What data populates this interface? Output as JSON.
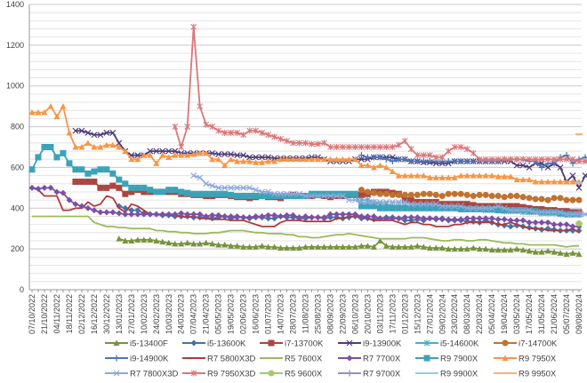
{
  "chart_data": {
    "type": "line",
    "title": "",
    "xlabel": "",
    "ylabel": "",
    "ylim": [
      0,
      1400
    ],
    "yticks": [
      0,
      200,
      400,
      600,
      800,
      1000,
      1200,
      1400
    ],
    "minor_grid_step": 40,
    "grid": true,
    "legend_position": "bottom",
    "x_labels": [
      "07/10/2022",
      "21/10/2022",
      "04/11/2022",
      "18/11/2022",
      "02/12/2022",
      "16/12/2022",
      "30/12/2022",
      "13/01/2023",
      "27/01/2023",
      "10/02/2023",
      "24/02/2023",
      "10/03/2023",
      "24/03/2023",
      "07/04/2023",
      "21/04/2023",
      "05/05/2023",
      "19/05/2023",
      "02/06/2023",
      "16/06/2023",
      "01/07/2023",
      "14/07/2023",
      "28/07/2023",
      "11/08/2023",
      "25/08/2023",
      "08/09/2023",
      "22/09/2023",
      "06/10/2023",
      "20/10/2023",
      "03/11/2023",
      "17/11/2023",
      "01/12/2023",
      "15/12/2023",
      "27/01/2024",
      "09/02/2024",
      "23/02/2024",
      "08/03/2024",
      "22/03/2024",
      "05/04/2024",
      "19/04/2024",
      "03/05/2024",
      "17/05/2024",
      "31/05/2024",
      "21/06/2024",
      "05/07/2024",
      "09/08/2024"
    ],
    "points_per_label": 2,
    "n_points": 89,
    "series": [
      {
        "name": "i5-13400F",
        "color": "#77933C",
        "marker": "triangle",
        "start": 14,
        "values": [
          250,
          240,
          240,
          245,
          245,
          245,
          240,
          235,
          230,
          225,
          225,
          230,
          225,
          225,
          230,
          225,
          220,
          220,
          215,
          215,
          210,
          210,
          210,
          215,
          210,
          210,
          205,
          205,
          205,
          205,
          210,
          210,
          210,
          210,
          210,
          210,
          210,
          210,
          210,
          215,
          215,
          210,
          240,
          215,
          210,
          210,
          210,
          210,
          215,
          210,
          205,
          205,
          205,
          200,
          200,
          200,
          200,
          205,
          200,
          200,
          195,
          195,
          195,
          195,
          200,
          195,
          190,
          185,
          185,
          190,
          185,
          180,
          175,
          180,
          175
        ]
      },
      {
        "name": "i5-13600K",
        "color": "#4572A7",
        "marker": "diamond",
        "start": 14,
        "values": [
          410,
          400,
          390,
          390,
          375,
          370,
          370,
          365,
          365,
          360,
          360,
          360,
          355,
          355,
          355,
          350,
          355,
          360,
          350,
          355,
          355,
          350,
          355,
          355,
          350,
          350,
          360,
          355,
          355,
          350,
          350,
          355,
          355,
          350,
          355,
          355,
          350,
          355,
          360,
          350,
          350,
          345,
          350,
          355,
          355,
          350,
          340,
          340,
          345,
          340,
          350,
          345,
          350,
          340,
          340,
          340,
          335,
          335,
          330,
          340,
          330,
          320,
          315,
          310,
          315,
          310,
          305,
          300,
          295,
          300,
          295,
          290,
          290,
          290,
          290
        ]
      },
      {
        "name": "i7-13700K",
        "color": "#AA4643",
        "marker": "square",
        "start": 7,
        "values": [
          530,
          530,
          530,
          530,
          500,
          500,
          510,
          500,
          470,
          480,
          490,
          480,
          480,
          480,
          480,
          480,
          480,
          470,
          470,
          465,
          465,
          460,
          460,
          465,
          465,
          460,
          455,
          455,
          450,
          455,
          460,
          455,
          455,
          450,
          460,
          465,
          460,
          460,
          460,
          465,
          460,
          455,
          460,
          460,
          465,
          465,
          465,
          470,
          480,
          480,
          480,
          475,
          470,
          440,
          440,
          430,
          430,
          430,
          430,
          420,
          420,
          420,
          420,
          420,
          415,
          410,
          410,
          410,
          410,
          410,
          410,
          410,
          405,
          400,
          395,
          395,
          390,
          390,
          385,
          385,
          380,
          380
        ]
      },
      {
        "name": "i9-13900K",
        "color": "#4F3D7A",
        "marker": "x",
        "start": 7,
        "values": [
          780,
          780,
          770,
          760,
          760,
          770,
          770,
          720,
          680,
          660,
          660,
          660,
          680,
          680,
          680,
          680,
          680,
          670,
          670,
          670,
          670,
          670,
          670,
          665,
          665,
          665,
          660,
          660,
          650,
          650,
          650,
          650,
          645,
          645,
          645,
          645,
          645,
          645,
          650,
          650,
          640,
          630,
          630,
          630,
          630,
          640,
          640,
          640,
          650,
          650,
          650,
          650,
          640,
          640,
          630,
          630,
          625,
          625,
          620,
          620,
          620,
          630,
          630,
          630,
          630,
          630,
          630,
          630,
          630,
          630,
          630,
          610,
          610,
          600,
          620,
          620,
          600,
          620,
          600,
          530,
          560,
          500,
          560,
          580,
          510,
          530,
          510,
          520
        ]
      },
      {
        "name": "i5-14600K",
        "color": "#4BACC6",
        "marker": "star",
        "start": 53,
        "values": [
          440,
          440,
          430,
          420,
          420,
          410,
          410,
          410,
          410,
          410,
          410,
          410,
          400,
          400,
          400,
          400,
          400,
          395,
          395,
          395,
          390,
          390,
          390,
          385,
          385,
          385,
          380,
          380,
          380,
          375,
          375,
          375,
          370,
          370,
          370,
          370
        ]
      },
      {
        "name": "i7-14700K",
        "color": "#C0722E",
        "marker": "circle",
        "start": 53,
        "values": [
          490,
          480,
          475,
          470,
          470,
          465,
          465,
          465,
          465,
          465,
          470,
          470,
          465,
          460,
          470,
          470,
          470,
          465,
          460,
          465,
          465,
          460,
          460,
          455,
          460,
          460,
          455,
          450,
          445,
          445,
          440,
          450,
          450,
          440,
          440,
          440
        ]
      },
      {
        "name": "i9-14900K",
        "color": "#4A78B8",
        "marker": "plus",
        "start": 53,
        "values": [
          660,
          650,
          650,
          650,
          640,
          630,
          640,
          640,
          630,
          630,
          630,
          630,
          630,
          630,
          630,
          630,
          630,
          630,
          630,
          630,
          630,
          630,
          630,
          640,
          640,
          640,
          640,
          630,
          630,
          600,
          620,
          620,
          650,
          660,
          620,
          640,
          650,
          640,
          640,
          620,
          620,
          600,
          610,
          620
        ]
      },
      {
        "name": "R7 5800X3D",
        "color": "#B03A3A",
        "marker": "none",
        "start": 0,
        "values": [
          500,
          490,
          460,
          460,
          460,
          390,
          390,
          400,
          400,
          430,
          410,
          420,
          460,
          450,
          400,
          380,
          420,
          410,
          390,
          370,
          370,
          370,
          370,
          365,
          360,
          355,
          360,
          350,
          350,
          345,
          345,
          345,
          340,
          340,
          340,
          330,
          320,
          310,
          310,
          310,
          330,
          340,
          340,
          340,
          335,
          335,
          335,
          335,
          335,
          350,
          350,
          360,
          360,
          360,
          350,
          340,
          340,
          340,
          340,
          330,
          320,
          330,
          330,
          320,
          320,
          310,
          310,
          310,
          320,
          320,
          330,
          330,
          330,
          330,
          330,
          320,
          320,
          330,
          320,
          310,
          300,
          300,
          300,
          290,
          290,
          290,
          290,
          300,
          280
        ]
      },
      {
        "name": "R5 7600X",
        "color": "#9BBB59",
        "marker": "none",
        "start": 0,
        "values": [
          360,
          360,
          360,
          360,
          360,
          360,
          360,
          360,
          360,
          360,
          330,
          320,
          310,
          310,
          305,
          305,
          300,
          300,
          300,
          300,
          290,
          290,
          285,
          285,
          280,
          280,
          275,
          275,
          275,
          280,
          280,
          285,
          290,
          290,
          290,
          285,
          280,
          280,
          275,
          275,
          275,
          270,
          270,
          260,
          260,
          255,
          255,
          260,
          265,
          270,
          270,
          275,
          270,
          265,
          260,
          255,
          250,
          250,
          250,
          250,
          250,
          255,
          255,
          255,
          250,
          245,
          240,
          240,
          245,
          245,
          240,
          240,
          245,
          245,
          240,
          235,
          230,
          230,
          225,
          225,
          220,
          220,
          220,
          220,
          220,
          215,
          210,
          215,
          215
        ]
      },
      {
        "name": "R7 7700X",
        "color": "#7E4FA6",
        "marker": "diamond",
        "start": 0,
        "values": [
          500,
          495,
          500,
          500,
          480,
          475,
          440,
          420,
          410,
          400,
          390,
          380,
          380,
          380,
          375,
          370,
          370,
          370,
          370,
          370,
          370,
          370,
          370,
          370,
          375,
          370,
          370,
          370,
          360,
          365,
          365,
          360,
          360,
          360,
          355,
          355,
          360,
          360,
          365,
          365,
          360,
          365,
          365,
          355,
          360,
          355,
          355,
          355,
          370,
          370,
          370,
          370,
          370,
          360,
          360,
          360,
          350,
          350,
          350,
          350,
          355,
          355,
          355,
          350,
          350,
          350,
          345,
          345,
          345,
          345,
          350,
          350,
          350,
          350,
          350,
          345,
          345,
          340,
          340,
          340,
          330,
          330,
          330,
          330,
          320,
          320,
          320,
          310,
          310
        ]
      },
      {
        "name": "R9 7900X",
        "color": "#3BA3B8",
        "marker": "square",
        "start": 0,
        "values": [
          590,
          650,
          700,
          700,
          650,
          670,
          620,
          590,
          590,
          570,
          580,
          590,
          590,
          570,
          540,
          520,
          500,
          500,
          500,
          490,
          480,
          480,
          490,
          490,
          480,
          475,
          470,
          470,
          470,
          470,
          470,
          470,
          465,
          460,
          460,
          460,
          460,
          460,
          460,
          460,
          460,
          460,
          460,
          460,
          460,
          470,
          470,
          470,
          470,
          470,
          470,
          470,
          470,
          410,
          410,
          410,
          400,
          400,
          400,
          400,
          400,
          400,
          400,
          400,
          400,
          400,
          400,
          400,
          400,
          395,
          395,
          395,
          395,
          395,
          395,
          390,
          390,
          390,
          390,
          390,
          385,
          385,
          380,
          380,
          380,
          375,
          370,
          370,
          370
        ]
      },
      {
        "name": "R9 7950X",
        "color": "#F79646",
        "marker": "triangle",
        "start": 0,
        "values": [
          870,
          870,
          870,
          900,
          850,
          900,
          770,
          700,
          700,
          720,
          700,
          700,
          710,
          710,
          700,
          680,
          640,
          640,
          660,
          660,
          620,
          660,
          650,
          660,
          660,
          660,
          665,
          670,
          670,
          640,
          640,
          610,
          640,
          630,
          630,
          630,
          625,
          625,
          630,
          630,
          640,
          640,
          640,
          640,
          640,
          640,
          640,
          640,
          640,
          640,
          640,
          640,
          640,
          610,
          610,
          600,
          610,
          600,
          580,
          560,
          560,
          560,
          560,
          560,
          550,
          550,
          550,
          550,
          550,
          560,
          560,
          560,
          560,
          560,
          560,
          555,
          555,
          555,
          540,
          540,
          540,
          530,
          530,
          530,
          530,
          530,
          530,
          530,
          530
        ]
      },
      {
        "name": "R7 7800X3D",
        "color": "#8EA9DB",
        "marker": "x",
        "start": 26,
        "values": [
          560,
          550,
          520,
          510,
          500,
          500,
          500,
          500,
          500,
          500,
          490,
          480,
          480,
          470,
          470,
          470,
          470,
          470,
          460,
          460,
          460,
          460,
          460,
          460,
          460,
          440,
          440,
          430,
          430,
          430,
          430,
          430,
          430,
          430,
          430,
          420,
          420,
          420,
          420,
          420,
          410,
          410,
          410,
          410,
          400,
          400,
          400,
          400,
          400,
          410,
          400,
          390,
          390,
          390,
          390,
          380,
          380,
          380,
          380,
          380,
          370,
          370,
          370,
          370,
          370,
          360,
          360,
          360,
          360,
          360,
          350,
          350,
          350,
          350,
          340,
          340,
          330,
          330,
          330,
          330,
          320,
          320,
          320
        ]
      },
      {
        "name": "R9 7950X3D",
        "color": "#D9777A",
        "marker": "star",
        "start": 23,
        "values": [
          800,
          700,
          800,
          1290,
          900,
          810,
          800,
          780,
          770,
          770,
          770,
          760,
          780,
          780,
          770,
          760,
          750,
          740,
          730,
          720,
          720,
          720,
          715,
          715,
          720,
          700,
          700,
          700,
          700,
          700,
          700,
          700,
          700,
          700,
          700,
          700,
          710,
          730,
          690,
          660,
          660,
          660,
          650,
          650,
          680,
          700,
          700,
          690,
          670,
          640,
          640,
          640,
          640,
          640,
          640,
          640,
          640,
          640,
          640,
          640,
          640,
          640,
          640,
          640,
          640,
          630,
          630,
          630,
          620,
          620,
          610,
          610,
          610,
          600,
          600,
          590,
          590,
          580,
          570,
          560,
          540,
          530
        ]
      },
      {
        "name": "R5 9600X",
        "color": "#A4C86A",
        "marker": "circle",
        "start": 88,
        "values": [
          325
        ]
      },
      {
        "name": "R7 9700X",
        "color": "#A08BC0",
        "marker": "plus",
        "start": 88,
        "values": [
          380
        ]
      },
      {
        "name": "R9 9900X",
        "color": "#93CDDD",
        "marker": "none",
        "start": 88,
        "values": [
          525
        ]
      },
      {
        "name": "R9 9950X",
        "color": "#FAB07E",
        "marker": "none",
        "start": 88,
        "values": [
          763
        ]
      }
    ]
  }
}
